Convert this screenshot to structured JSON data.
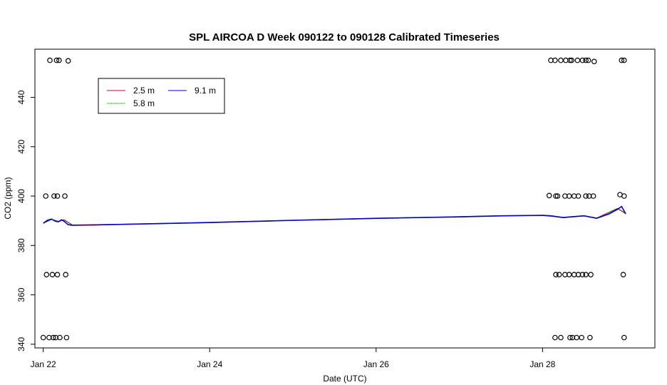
{
  "chart_data": {
    "type": "line",
    "title": "SPL AIRCOA D  Week 090122 to 090128  Calibrated Timeseries",
    "xlabel": "Date (UTC)",
    "ylabel": "CO2 (ppm)",
    "xlim": [
      -0.1,
      7.35
    ],
    "ylim": [
      338.5,
      459.5
    ],
    "x_ticks": [
      {
        "value": 0,
        "label": "Jan 22"
      },
      {
        "value": 2,
        "label": "Jan 24"
      },
      {
        "value": 4,
        "label": "Jan 26"
      },
      {
        "value": 6,
        "label": "Jan 28"
      }
    ],
    "y_ticks": [
      340,
      360,
      380,
      400,
      420,
      440
    ],
    "grid": false,
    "legend": {
      "placement": "top-left"
    },
    "series": [
      {
        "name": "2.5 m",
        "color": "#cc0033",
        "x": [
          0.0,
          0.1,
          0.18,
          0.25,
          0.35,
          1.0,
          2.0,
          3.0,
          4.0,
          5.0,
          5.5,
          6.0,
          6.25,
          6.5,
          6.65,
          6.9,
          7.0
        ],
        "y": [
          389.0,
          390.6,
          389.8,
          390.4,
          388.3,
          388.6,
          389.3,
          390.2,
          391.0,
          391.6,
          392.0,
          392.2,
          391.4,
          392.0,
          391.1,
          395.0,
          393.0
        ]
      },
      {
        "name": "5.8 m",
        "color": "#008800",
        "x": [
          0.0,
          0.1,
          0.18,
          0.25,
          0.35,
          1.0,
          2.0,
          3.0,
          4.0,
          5.0,
          5.5,
          6.0,
          6.25,
          6.5,
          6.65,
          6.9,
          7.0
        ],
        "y": [
          389.0,
          390.5,
          389.7,
          390.3,
          388.2,
          388.5,
          389.2,
          390.1,
          390.9,
          391.5,
          391.9,
          392.1,
          391.3,
          391.9,
          391.0,
          394.9,
          392.9
        ]
      },
      {
        "name": "9.1 m",
        "color": "#0000cc",
        "x": [
          0.0,
          0.05,
          0.1,
          0.14,
          0.18,
          0.22,
          0.25,
          0.3,
          0.35,
          0.6,
          1.0,
          2.0,
          3.0,
          4.0,
          5.0,
          5.5,
          6.0,
          6.1,
          6.25,
          6.35,
          6.5,
          6.65,
          6.8,
          6.9,
          6.95,
          7.0
        ],
        "y": [
          389.0,
          390.2,
          390.7,
          389.9,
          389.6,
          390.4,
          389.8,
          388.4,
          388.2,
          388.3,
          388.6,
          389.3,
          390.2,
          391.0,
          391.6,
          392.0,
          392.2,
          392.0,
          391.3,
          391.6,
          392.0,
          391.0,
          392.8,
          394.6,
          395.8,
          392.8
        ]
      }
    ],
    "flag_points": {
      "marker": "open-circle",
      "x": [
        0.0,
        0.07,
        0.12,
        0.15,
        0.2,
        0.28,
        0.08,
        0.16,
        0.19,
        0.3,
        0.04,
        0.11,
        0.17,
        0.27,
        0.03,
        0.13,
        0.17,
        0.26,
        6.1,
        6.15,
        6.22,
        6.28,
        6.33,
        6.35,
        6.42,
        6.48,
        6.52,
        6.55,
        6.62,
        6.95,
        6.98,
        6.08,
        6.16,
        6.18,
        6.27,
        6.32,
        6.38,
        6.43,
        6.52,
        6.56,
        6.61,
        6.93,
        6.98,
        6.16,
        6.2,
        6.27,
        6.32,
        6.38,
        6.43,
        6.48,
        6.52,
        6.58,
        6.97,
        6.15,
        6.22,
        6.33,
        6.36,
        6.41,
        6.47,
        6.57,
        6.98
      ],
      "y": [
        342.7,
        342.7,
        342.7,
        342.7,
        342.7,
        342.7,
        455.0,
        455.0,
        455.0,
        454.8,
        368.2,
        368.2,
        368.2,
        368.2,
        400.0,
        400.0,
        400.0,
        400.0,
        455.0,
        455.0,
        455.0,
        455.0,
        455.0,
        455.0,
        455.0,
        455.0,
        455.0,
        455.0,
        454.5,
        455.0,
        455.0,
        400.2,
        400.0,
        400.0,
        400.0,
        400.0,
        400.0,
        400.0,
        400.0,
        400.0,
        400.0,
        400.6,
        400.0,
        368.2,
        368.2,
        368.2,
        368.2,
        368.2,
        368.2,
        368.2,
        368.2,
        368.2,
        368.2,
        342.7,
        342.7,
        342.7,
        342.7,
        342.7,
        342.7,
        342.7,
        342.7
      ]
    }
  }
}
